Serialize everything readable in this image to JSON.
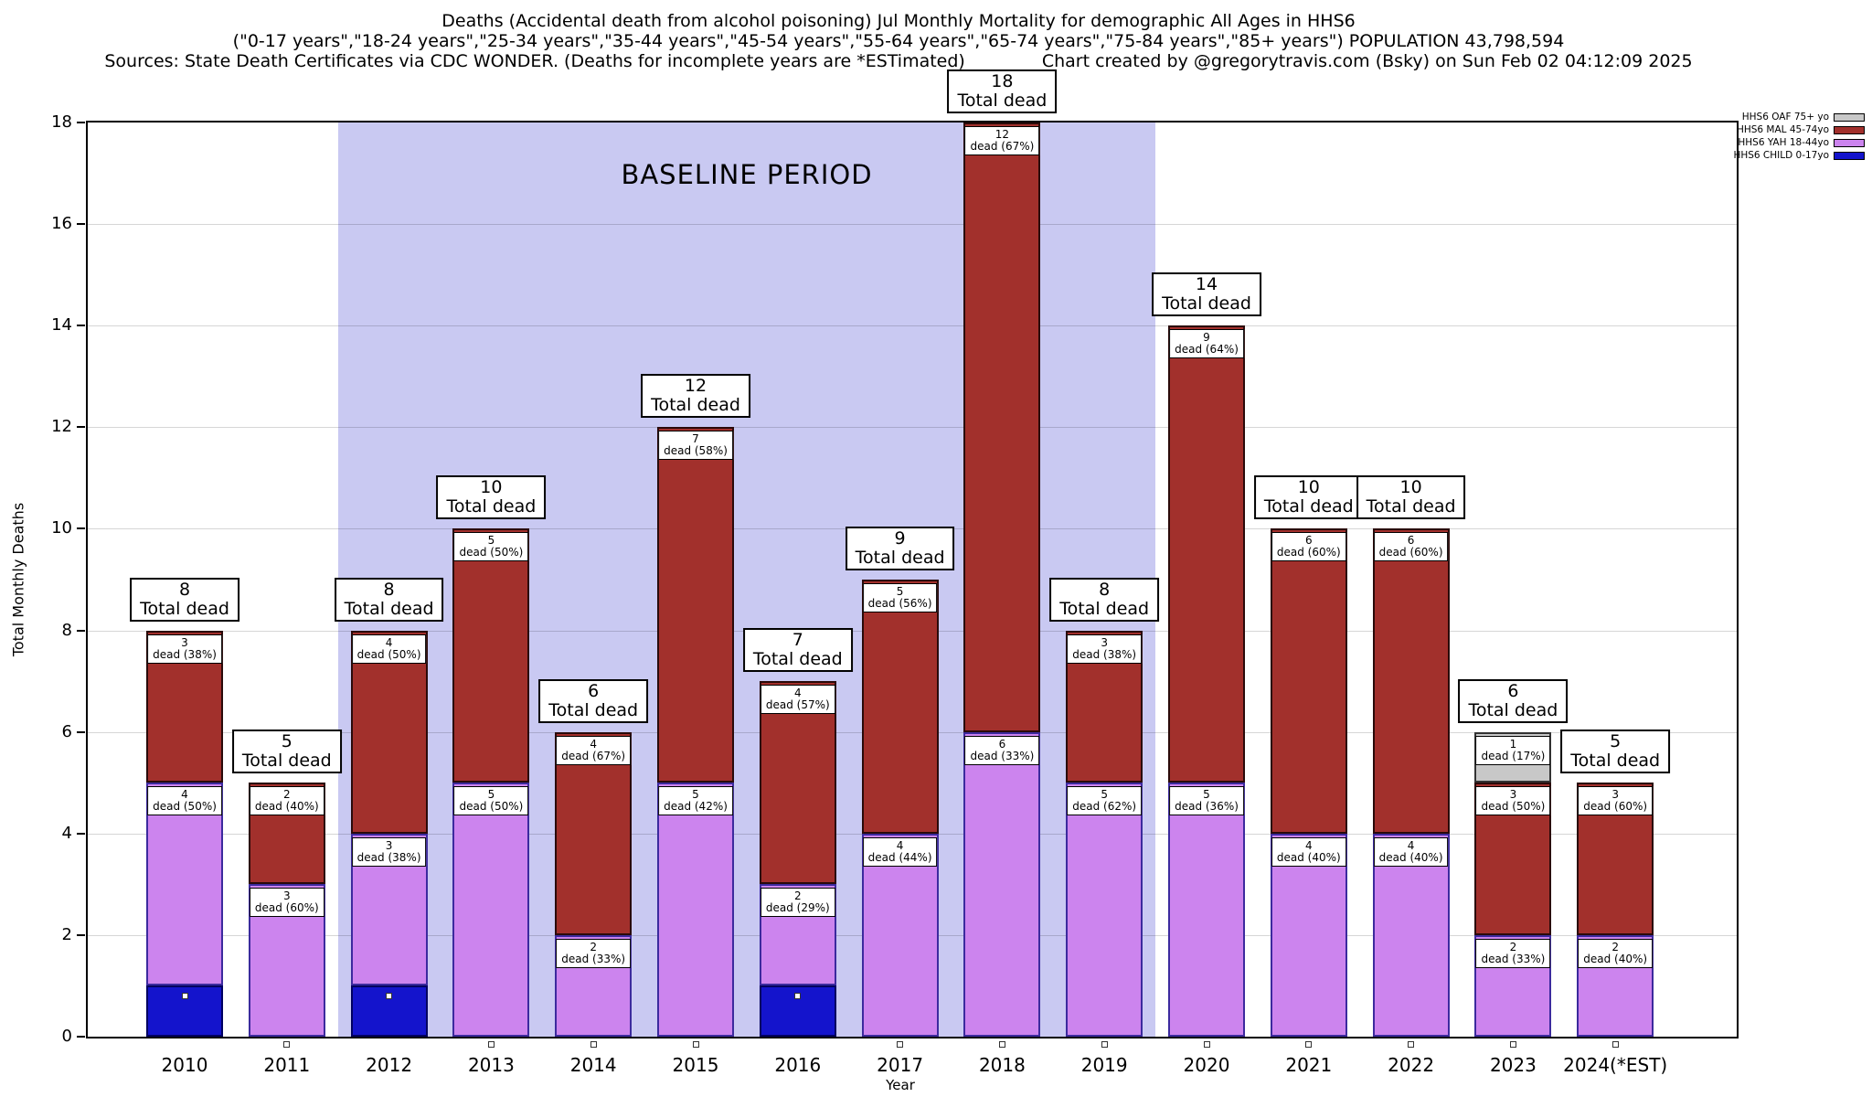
{
  "header": {
    "title_line1": "Deaths (Accidental death from alcohol poisoning) Jul Monthly Mortality for demographic All Ages in HHS6",
    "title_line2": "(\"0-17 years\",\"18-24 years\",\"25-34 years\",\"35-44 years\",\"45-54 years\",\"55-64 years\",\"65-74 years\",\"75-84 years\",\"85+ years\") POPULATION 43,798,594",
    "sources": "Sources: State Death Certificates via CDC WONDER. (Deaths for incomplete years are *ESTimated)",
    "credit": "Chart created by @gregorytravis.com (Bsky) on Sun Feb 02 04:12:09 2025"
  },
  "chart_data": {
    "type": "bar",
    "stacked": true,
    "title": "Deaths (Accidental death from alcohol poisoning) Jul Monthly Mortality for demographic All Ages in HHS6",
    "xlabel": "Year",
    "ylabel": "Total Monthly Deaths",
    "ylim": [
      0,
      18
    ],
    "ytick_step": 2,
    "grid": "horizontal",
    "legend_position": "top-right",
    "total_dead_label": "Total dead",
    "marker_series_key": "child",
    "categories": [
      "2010",
      "2011",
      "2012",
      "2013",
      "2014",
      "2015",
      "2016",
      "2017",
      "2018",
      "2019",
      "2020",
      "2021",
      "2022",
      "2023",
      "2024(*EST)"
    ],
    "totals": [
      8,
      5,
      8,
      10,
      6,
      12,
      7,
      9,
      18,
      8,
      14,
      10,
      10,
      6,
      5
    ],
    "baseline_region": {
      "label": "BASELINE PERIOD",
      "from_category": "2012",
      "to_category": "2019",
      "color": "#c9c9f2"
    },
    "series": [
      {
        "key": "child",
        "name": "HHS6 CHILD 0-17yo",
        "color": "#1414cc",
        "border": "#000060",
        "values": [
          1,
          0,
          1,
          0,
          0,
          0,
          1,
          0,
          0,
          0,
          0,
          0,
          0,
          0,
          0
        ],
        "labels": [
          null,
          null,
          null,
          null,
          null,
          null,
          null,
          null,
          null,
          null,
          null,
          null,
          null,
          null,
          null
        ]
      },
      {
        "key": "yah",
        "name": "HHS6 YAH 18-44yo",
        "color": "#cc84ee",
        "border": "#3c2a9e",
        "values": [
          4,
          3,
          3,
          5,
          2,
          5,
          2,
          4,
          6,
          5,
          5,
          4,
          4,
          2,
          2
        ],
        "labels": [
          "4|dead (50%)",
          "3|dead (60%)",
          "3|dead (38%)",
          "5|dead (50%)",
          "2|dead (33%)",
          "5|dead (42%)",
          "2|dead (29%)",
          "4|dead (44%)",
          "6|dead (33%)",
          "5|dead (62%)",
          "5|dead (36%)",
          "4|dead (40%)",
          "4|dead (40%)",
          "2|dead (33%)",
          "2|dead (40%)"
        ]
      },
      {
        "key": "mal",
        "name": "HHS6 MAL 45-74yo",
        "color": "#a2302c",
        "border": "#2a0a0a",
        "values": [
          3,
          2,
          4,
          5,
          4,
          7,
          4,
          5,
          12,
          3,
          9,
          6,
          6,
          3,
          3
        ],
        "labels": [
          "3|dead (38%)",
          "2|dead (40%)",
          "4|dead (50%)",
          "5|dead (50%)",
          "4|dead (67%)",
          "7|dead (58%)",
          "4|dead (57%)",
          "5|dead (56%)",
          "12|dead (67%)",
          "3|dead (38%)",
          "9|dead (64%)",
          "6|dead (60%)",
          "6|dead (60%)",
          "3|dead (50%)",
          "3|dead (60%)"
        ]
      },
      {
        "key": "oaf",
        "name": "HHS6 OAF 75+ yo",
        "color": "#c8c8c8",
        "border": "#333333",
        "values": [
          0,
          0,
          0,
          0,
          0,
          0,
          0,
          0,
          0,
          0,
          0,
          0,
          0,
          1,
          0
        ],
        "labels": [
          null,
          null,
          null,
          null,
          null,
          null,
          null,
          null,
          null,
          null,
          null,
          null,
          null,
          "1|dead (17%)",
          null
        ]
      }
    ],
    "legend": [
      {
        "label": "HHS6 OAF 75+ yo",
        "color": "#c8c8c8"
      },
      {
        "label": "HHS6 MAL 45-74yo",
        "color": "#a2302c"
      },
      {
        "label": "HHS6 YAH 18-44yo",
        "color": "#cc84ee"
      },
      {
        "label": "HHS6 CHILD 0-17yo",
        "color": "#1414cc"
      }
    ]
  }
}
